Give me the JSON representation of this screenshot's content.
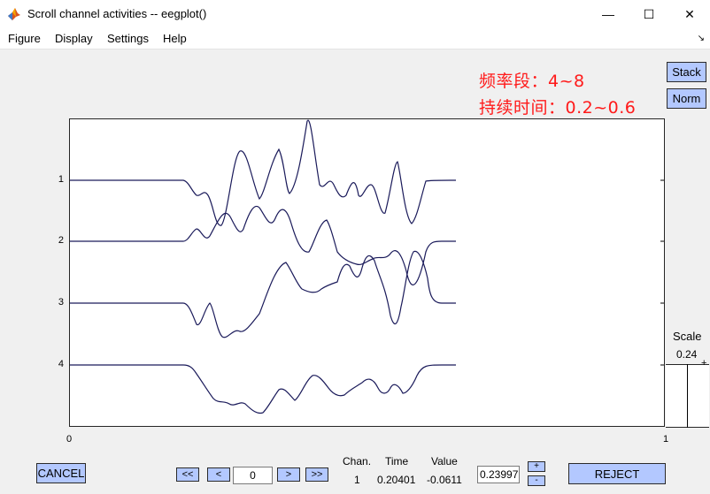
{
  "window": {
    "title": "Scroll channel activities -- eegplot()",
    "minimize_glyph": "—",
    "maximize_glyph": "☐",
    "close_glyph": "✕",
    "icon": "matlab-icon"
  },
  "menu": {
    "items": [
      "Figure",
      "Display",
      "Settings",
      "Help"
    ],
    "dock_glyph": "↘"
  },
  "annotations": {
    "line1": "频率段：4~8",
    "line2": "持续时间：0.2~0.6"
  },
  "side_buttons": {
    "stack": "Stack",
    "norm": "Norm"
  },
  "plot": {
    "channel_labels": [
      "1",
      "2",
      "3",
      "4"
    ],
    "x_tick_labels": [
      "0",
      "1"
    ],
    "trace_color": "#1a1a5a"
  },
  "scale": {
    "title": "Scale",
    "value": "0.24",
    "tick": "+"
  },
  "controls": {
    "cancel": "CANCEL",
    "reject": "REJECT",
    "nav_first": "<<",
    "nav_prev": "<",
    "nav_next": ">",
    "nav_last": ">>",
    "position_value": "0",
    "value_input": "0.23997",
    "step_plus": "+",
    "step_minus": "-"
  },
  "info": {
    "chan_label": "Chan.",
    "time_label": "Time",
    "value_label": "Value",
    "chan_value": "1",
    "time_value": "0.20401",
    "value_value": "-0.0611"
  },
  "colors": {
    "button_blue": "#b3c8ff",
    "annotation_red": "#ff1a1a"
  }
}
